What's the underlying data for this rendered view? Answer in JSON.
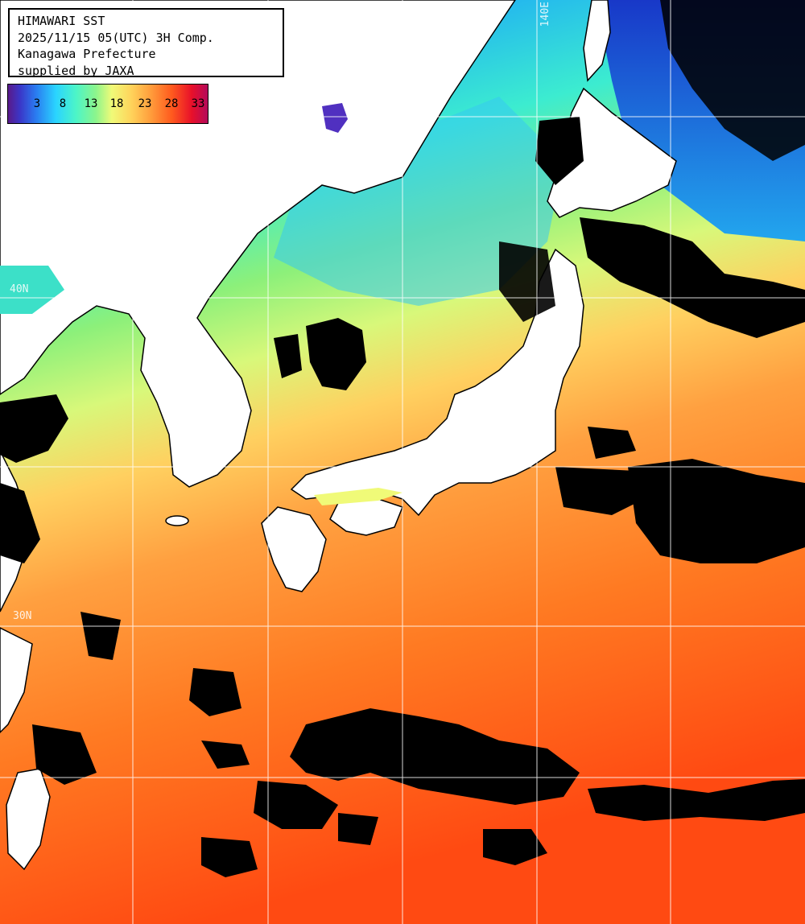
{
  "info": {
    "line1": "HIMAWARI SST",
    "line2": "2025/11/15 05(UTC) 3H Comp.",
    "line3": "Kanagawa Prefecture",
    "line4": "supplied by JAXA"
  },
  "colorbar": {
    "ticks": [
      "3",
      "8",
      "13",
      "18",
      "23",
      "28",
      "33"
    ],
    "colors": [
      "#5a1a8a",
      "#2a7cf0",
      "#2ad4ff",
      "#8cf58c",
      "#f0fa78",
      "#ff9a3a",
      "#e8102a"
    ]
  },
  "grid_labels": {
    "lon_140": "140E",
    "lat_40": "40N",
    "lat_30": "30N"
  },
  "map_colors": {
    "land": "#ffffff",
    "cloud": "#000000",
    "cold_sea": "#1a6ee6",
    "cool_sea": "#2ae0e0",
    "mild_sea": "#8cf07a",
    "warm_sea": "#ffb040",
    "hot_sea": "#ff5a14"
  }
}
